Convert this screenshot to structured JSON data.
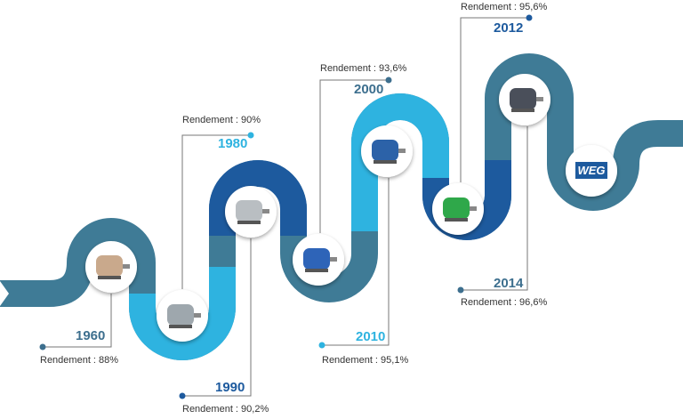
{
  "milestones": [
    {
      "year": "1960",
      "rendement": "Rendement : 88%"
    },
    {
      "year": "1980",
      "rendement": "Rendement : 90%"
    },
    {
      "year": "1990",
      "rendement": "Rendement : 90,2%"
    },
    {
      "year": "2000",
      "rendement": "Rendement : 93,6%"
    },
    {
      "year": "2010",
      "rendement": "Rendement : 95,1%"
    },
    {
      "year": "2012",
      "rendement": "Rendement : 95,6%"
    },
    {
      "year": "2014",
      "rendement": "Rendement : 96,6%"
    }
  ],
  "logo": "WEG"
}
